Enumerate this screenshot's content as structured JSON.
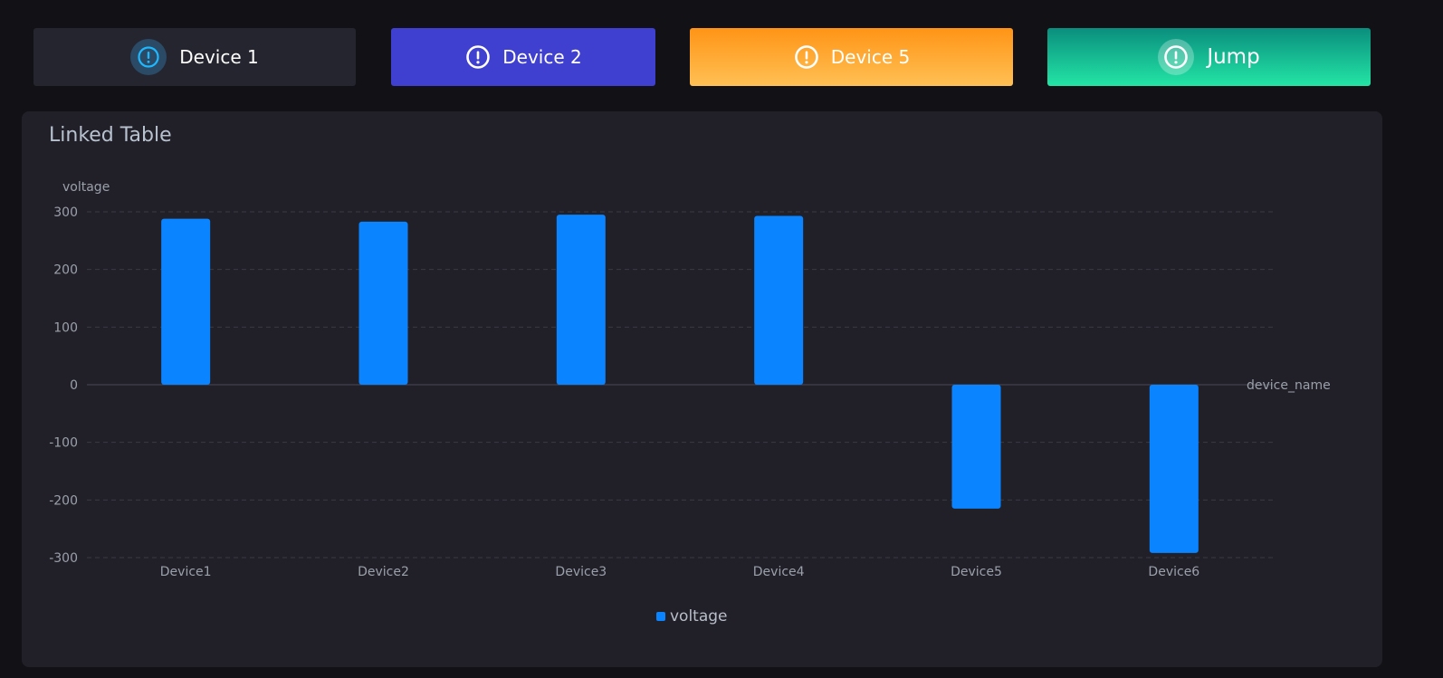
{
  "buttons": [
    {
      "label": "Device 1",
      "icon": "exclamation-circle-icon"
    },
    {
      "label": "Device 2",
      "icon": "exclamation-circle-icon"
    },
    {
      "label": "Device 5",
      "icon": "exclamation-circle-icon"
    },
    {
      "label": "Jump",
      "icon": "exclamation-circle-icon"
    }
  ],
  "colors": {
    "background": "#111116",
    "panel": "#212029",
    "bar": "#0a84ff",
    "button_device1": "#252530",
    "button_device2": "#3f3fd0",
    "button_device5_top": "#ff9416",
    "button_device5_bottom": "#ffc054",
    "button_jump_top": "#0a8e7e",
    "button_jump_bottom": "#23e5a5"
  },
  "panel": {
    "title": "Linked Table"
  },
  "chart_data": {
    "type": "bar",
    "categories": [
      "Device1",
      "Device2",
      "Device3",
      "Device4",
      "Device5",
      "Device6"
    ],
    "series": [
      {
        "name": "voltage",
        "values": [
          288,
          283,
          295,
          293,
          -215,
          -292
        ]
      }
    ],
    "xlabel": "device_name",
    "ylabel": "voltage",
    "ylim": [
      -300,
      300
    ],
    "yticks": [
      300,
      200,
      100,
      0,
      -100,
      -200,
      -300
    ],
    "grid": "horizontal-dashed",
    "legend": "bottom-center"
  }
}
